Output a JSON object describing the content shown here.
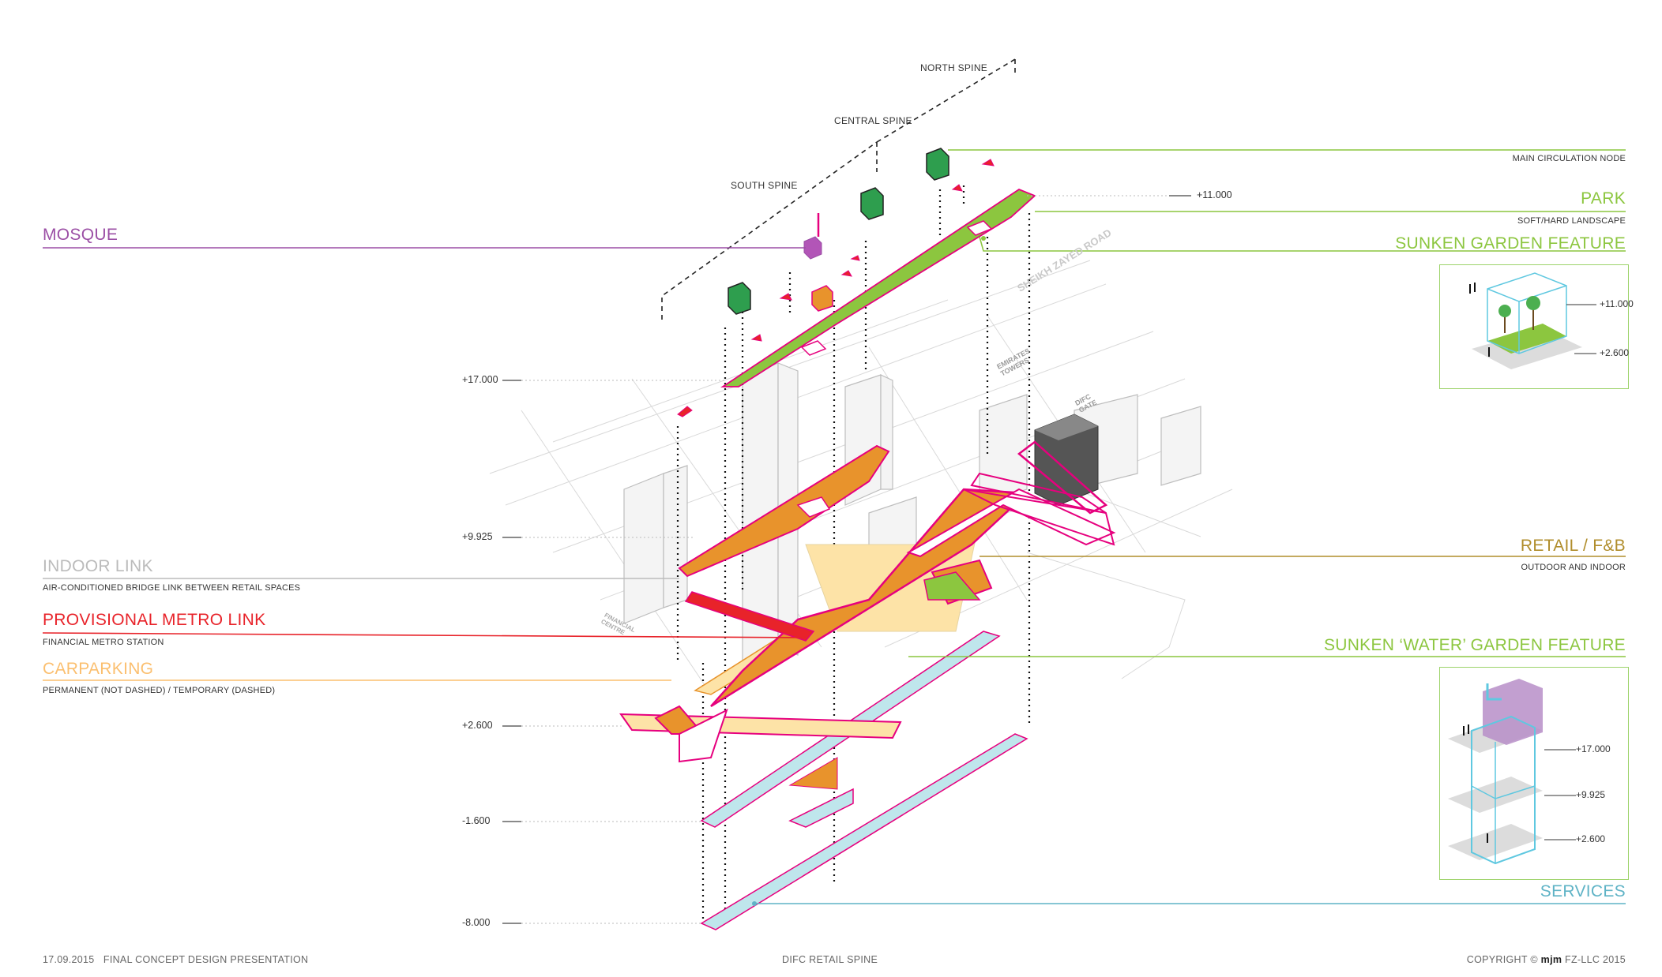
{
  "spines": {
    "north": "NORTH SPINE",
    "central": "CENTRAL SPINE",
    "south": "SOUTH SPINE"
  },
  "levels": {
    "l17": "+17.000",
    "l11": "+11.000",
    "l9925": "+9.925",
    "l2600": "+2.600",
    "lm1600": "-1.600",
    "lm8000": "-8.000"
  },
  "legend": {
    "main_node": {
      "subtitle": "MAIN CIRCULATION NODE"
    },
    "park": {
      "title": "PARK",
      "subtitle": "SOFT/HARD LANDSCAPE"
    },
    "sunken_garden": {
      "title": "SUNKEN GARDEN FEATURE"
    },
    "retail": {
      "title": "RETAIL / F&B",
      "subtitle": "OUTDOOR AND INDOOR"
    },
    "water_garden": {
      "title": "SUNKEN ‘WATER’ GARDEN FEATURE"
    },
    "services": {
      "title": "SERVICES"
    },
    "mosque": {
      "title": "MOSQUE"
    },
    "indoor_link": {
      "title": "INDOOR LINK",
      "subtitle": "AIR-CONDITIONED BRIDGE LINK BETWEEN RETAIL SPACES"
    },
    "metro_link": {
      "title": "PROVISIONAL METRO LINK",
      "subtitle": "FINANCIAL METRO STATION"
    },
    "carparking": {
      "title": "CARPARKING",
      "subtitle": "PERMANENT (NOT DASHED) / TEMPORARY (DASHED)"
    }
  },
  "inset_garden": {
    "top": "+11.000",
    "bottom": "+2.600"
  },
  "inset_water": {
    "top": "+17.000",
    "mid": "+9.925",
    "bottom": "+2.600"
  },
  "map_labels": {
    "road": "SHEIKH ZAYED ROAD",
    "towers": "EMIRATES TOWERS",
    "gate": "DIFC GATE",
    "central": "FINANCIAL CENTRE"
  },
  "footer": {
    "date": "17.09.2015",
    "presentation": "FINAL CONCEPT DESIGN PRESENTATION",
    "project": "DIFC RETAIL SPINE",
    "copyright": "COPYRIGHT ©",
    "brand": "mjm",
    "company": "FZ-LLC 2015"
  },
  "colors": {
    "park": "#8cc63f",
    "retail": "#e8932c",
    "metro": "#e8232a",
    "indoor": "#bbbbbb",
    "carpark": "#fde3a7",
    "services": "#bfe6ec",
    "mosque": "#9b4fa5",
    "magenta": "#e6007e"
  }
}
